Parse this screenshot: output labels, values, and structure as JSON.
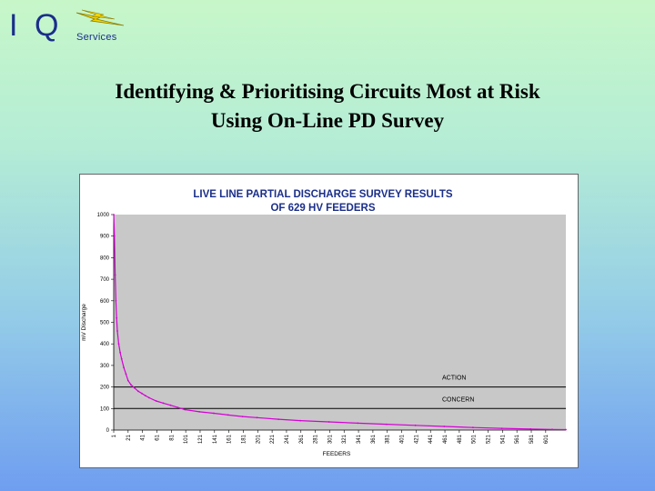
{
  "logo": {
    "letter_i": "I",
    "letter_q": "Q",
    "services": "Services"
  },
  "slide": {
    "title_line1": "Identifying & Prioritising Circuits Most at Risk",
    "title_line2": "Using On-Line PD Survey"
  },
  "colors": {
    "series": "#d400d4",
    "plot_bg": "#c8c8c8",
    "title_text": "#1b2f8a"
  },
  "chart_data": {
    "type": "line",
    "title": "LIVE LINE PARTIAL DISCHARGE SURVEY RESULTS",
    "subtitle": "OF 629 HV FEEDERS",
    "xlabel": "FEEDERS",
    "ylabel": "mV Discharge",
    "ylim": [
      0,
      1000
    ],
    "xlim": [
      1,
      629
    ],
    "grid": false,
    "y_ticks": [
      0,
      100,
      200,
      300,
      400,
      500,
      600,
      700,
      800,
      900,
      1000
    ],
    "x_ticks": [
      "1",
      "21",
      "41",
      "61",
      "81",
      "101",
      "121",
      "141",
      "161",
      "181",
      "201",
      "221",
      "241",
      "261",
      "281",
      "301",
      "321",
      "341",
      "361",
      "381",
      "401",
      "421",
      "441",
      "461",
      "481",
      "501",
      "521",
      "541",
      "561",
      "581",
      "601"
    ],
    "thresholds": [
      {
        "name": "ACTION",
        "value": 200
      },
      {
        "name": "CONCERN",
        "value": 100
      }
    ],
    "series": [
      {
        "name": "mV Discharge",
        "x": [
          1,
          2,
          3,
          4,
          5,
          6,
          8,
          10,
          12,
          15,
          18,
          21,
          25,
          30,
          35,
          40,
          45,
          50,
          60,
          70,
          80,
          90,
          100,
          120,
          140,
          160,
          180,
          200,
          230,
          260,
          300,
          340,
          380,
          420,
          460,
          500,
          540,
          580,
          610,
          629
        ],
        "values": [
          1000,
          900,
          720,
          600,
          520,
          460,
          400,
          360,
          330,
          290,
          260,
          230,
          210,
          195,
          180,
          170,
          160,
          150,
          135,
          125,
          115,
          105,
          95,
          85,
          78,
          70,
          63,
          58,
          50,
          44,
          38,
          32,
          27,
          22,
          17,
          12,
          8,
          5,
          3,
          2
        ]
      }
    ]
  }
}
